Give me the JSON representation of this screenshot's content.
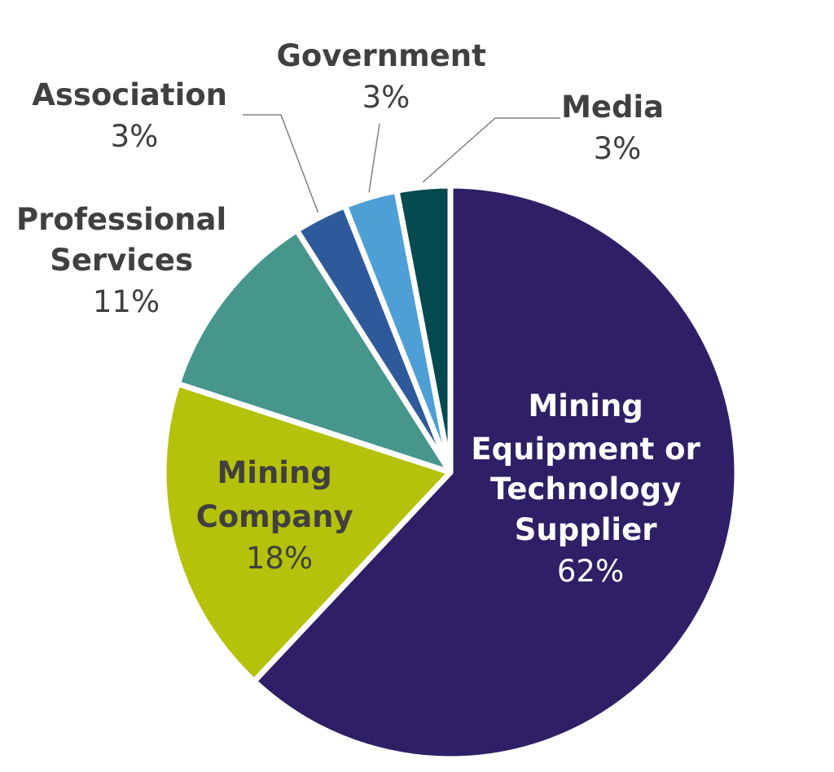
{
  "chart_data": {
    "type": "pie",
    "slices": [
      {
        "label": "Mining Equipment or Technology Supplier",
        "value": 62,
        "percent_label": "62%",
        "color": "#2e1f66"
      },
      {
        "label": "Mining Company",
        "value": 18,
        "percent_label": "18%",
        "color": "#b5c20b"
      },
      {
        "label": "Professional Services",
        "value": 11,
        "percent_label": "11%",
        "color": "#46968c"
      },
      {
        "label": "Association",
        "value": 3,
        "percent_label": "3%",
        "color": "#2e5a9c"
      },
      {
        "label": "Government",
        "value": 3,
        "percent_label": "3%",
        "color": "#4d9fd6"
      },
      {
        "label": "Media",
        "value": 3,
        "percent_label": "3%",
        "color": "#054a50"
      }
    ],
    "label_colors": {
      "dark": "#404040",
      "light": "#ffffff"
    }
  }
}
